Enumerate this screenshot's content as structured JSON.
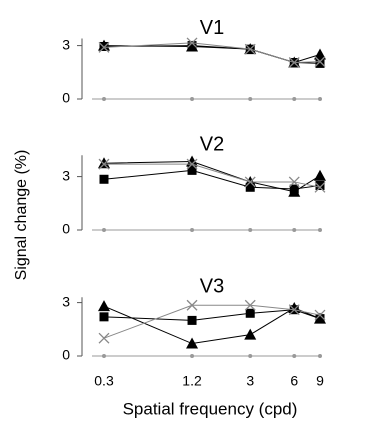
{
  "chart_data": [
    {
      "type": "line",
      "title": "V1",
      "x": [
        0.3,
        1.2,
        3,
        6,
        9
      ],
      "xlim": [
        0.3,
        9
      ],
      "xscale": "log",
      "ylim": [
        0,
        3.4
      ],
      "yticks": [
        0,
        3
      ],
      "series": [
        {
          "marker": "triangle",
          "color": "#000000",
          "values": [
            3.0,
            2.95,
            2.8,
            2.05,
            2.5
          ]
        },
        {
          "marker": "square",
          "color": "#000000",
          "values": [
            2.95,
            3.0,
            2.8,
            2.05,
            2.0
          ]
        },
        {
          "marker": "cross",
          "color": "#888888",
          "values": [
            2.9,
            3.15,
            2.8,
            2.05,
            2.1
          ]
        }
      ]
    },
    {
      "type": "line",
      "title": "V2",
      "ylabel": "Signal change (%)",
      "x": [
        0.3,
        1.2,
        3,
        6,
        9
      ],
      "xlim": [
        0.3,
        9
      ],
      "xscale": "log",
      "ylim": [
        0,
        4.2
      ],
      "yticks": [
        0,
        3
      ],
      "series": [
        {
          "marker": "triangle",
          "color": "#000000",
          "values": [
            3.75,
            3.85,
            2.7,
            2.15,
            3.05
          ]
        },
        {
          "marker": "square",
          "color": "#000000",
          "values": [
            2.85,
            3.35,
            2.4,
            2.3,
            2.5
          ]
        },
        {
          "marker": "cross",
          "color": "#888888",
          "values": [
            3.7,
            3.7,
            2.7,
            2.7,
            2.4
          ]
        }
      ]
    },
    {
      "type": "line",
      "title": "V3",
      "xlabel": "Spatial frequency (cpd)",
      "x": [
        0.3,
        1.2,
        3,
        6,
        9
      ],
      "xlim": [
        0.3,
        9
      ],
      "xscale": "log",
      "xticks": [
        0.3,
        1.2,
        3,
        6,
        9
      ],
      "ylim": [
        0,
        3.3
      ],
      "yticks": [
        0,
        3
      ],
      "series": [
        {
          "marker": "triangle",
          "color": "#000000",
          "values": [
            2.8,
            0.7,
            1.2,
            2.7,
            2.1
          ]
        },
        {
          "marker": "square",
          "color": "#000000",
          "values": [
            2.2,
            2.0,
            2.4,
            2.6,
            2.1
          ]
        },
        {
          "marker": "cross",
          "color": "#888888",
          "values": [
            1.0,
            2.85,
            2.85,
            2.6,
            2.3
          ]
        }
      ]
    }
  ]
}
